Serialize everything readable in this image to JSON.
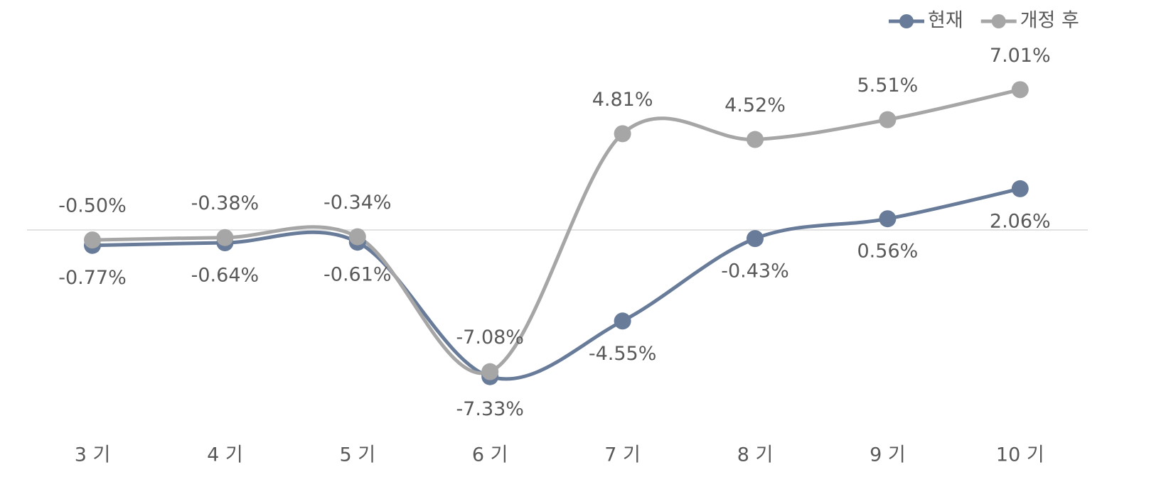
{
  "chart_data": {
    "type": "line",
    "categories": [
      "3 기",
      "4 기",
      "5 기",
      "6 기",
      "7 기",
      "8 기",
      "9 기",
      "10 기"
    ],
    "series": [
      {
        "name": "현재",
        "color": "#687c9a",
        "values": [
          -0.77,
          -0.64,
          -0.61,
          -7.33,
          -4.55,
          -0.43,
          0.56,
          2.06
        ],
        "value_labels": [
          "-0.77%",
          "-0.64%",
          "-0.61%",
          "-7.33%",
          "-4.55%",
          "-0.43%",
          "0.56%",
          "2.06%"
        ]
      },
      {
        "name": "개정 후",
        "color": "#a6a6a6",
        "values": [
          -0.5,
          -0.38,
          -0.34,
          -7.08,
          4.81,
          4.52,
          5.51,
          7.01
        ],
        "value_labels": [
          "-0.50%",
          "-0.38%",
          "-0.34%",
          "-7.08%",
          "4.81%",
          "4.52%",
          "5.51%",
          "7.01%"
        ]
      }
    ],
    "ylim": [
      -10,
      10
    ],
    "smooth": true,
    "legend": "top-right"
  }
}
